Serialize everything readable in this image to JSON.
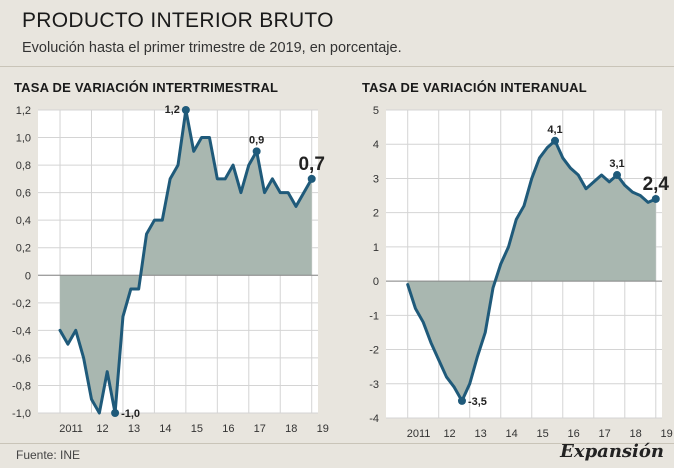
{
  "header": {
    "title": "PRODUCTO INTERIOR BRUTO",
    "subtitle": "Evolución hasta el primer trimestre de 2019, en porcentaje."
  },
  "footer": {
    "source": "Fuente: INE",
    "brand": "Expansión"
  },
  "colors": {
    "line": "#1f5a7a",
    "area": "#a9b7b0",
    "plot_bg": "#ffffff",
    "grid": "#d4d4d4",
    "background": "#e8e5de"
  },
  "chart_data": [
    {
      "type": "area",
      "title": "TASA DE VARIACIÓN INTERTRIMESTRAL",
      "xlabel": "",
      "ylabel": "",
      "ylim": [
        -1.0,
        1.2
      ],
      "yticks": [
        -1.0,
        -0.8,
        -0.6,
        -0.4,
        -0.2,
        0,
        0.2,
        0.4,
        0.6,
        0.8,
        1.0,
        1.2
      ],
      "ytick_labels": [
        "-1,0",
        "-0,8",
        "-0,6",
        "-0,4",
        "-0,2",
        "0",
        "0,2",
        "0,4",
        "0,6",
        "0,8",
        "1,0",
        "1,2"
      ],
      "categories": [
        "2011",
        "12",
        "13",
        "14",
        "15",
        "16",
        "17",
        "18",
        "19"
      ],
      "x": [
        2011.0,
        2011.25,
        2011.5,
        2011.75,
        2012.0,
        2012.25,
        2012.5,
        2012.75,
        2013.0,
        2013.25,
        2013.5,
        2013.75,
        2014.0,
        2014.25,
        2014.5,
        2014.75,
        2015.0,
        2015.25,
        2015.5,
        2015.75,
        2016.0,
        2016.25,
        2016.5,
        2016.75,
        2017.0,
        2017.25,
        2017.5,
        2017.75,
        2018.0,
        2018.25,
        2018.5,
        2018.75,
        2019.0
      ],
      "values": [
        -0.4,
        -0.5,
        -0.4,
        -0.6,
        -0.9,
        -1.0,
        -0.7,
        -1.0,
        -0.3,
        -0.1,
        -0.1,
        0.3,
        0.4,
        0.4,
        0.7,
        0.8,
        1.2,
        0.9,
        1.0,
        1.0,
        0.7,
        0.7,
        0.8,
        0.6,
        0.8,
        0.9,
        0.6,
        0.7,
        0.6,
        0.6,
        0.5,
        0.6,
        0.7
      ],
      "annotations": [
        {
          "index": 16,
          "label": "1,2",
          "pos": "left"
        },
        {
          "index": 7,
          "label": "-1,0",
          "pos": "right"
        },
        {
          "index": 25,
          "label": "0,9",
          "pos": "above"
        },
        {
          "index": 32,
          "label": "0,7",
          "pos": "big"
        }
      ],
      "grid": true
    },
    {
      "type": "area",
      "title": "TASA DE VARIACIÓN INTERANUAL",
      "xlabel": "",
      "ylabel": "",
      "ylim": [
        -4,
        5
      ],
      "yticks": [
        -4,
        -3,
        -2,
        -1,
        0,
        1,
        2,
        3,
        4,
        5
      ],
      "ytick_labels": [
        "-4",
        "-3",
        "-2",
        "-1",
        "0",
        "1",
        "2",
        "3",
        "4",
        "5"
      ],
      "categories": [
        "2011",
        "12",
        "13",
        "14",
        "15",
        "16",
        "17",
        "18",
        "19"
      ],
      "x": [
        2011.0,
        2011.25,
        2011.5,
        2011.75,
        2012.0,
        2012.25,
        2012.5,
        2012.75,
        2013.0,
        2013.25,
        2013.5,
        2013.75,
        2014.0,
        2014.25,
        2014.5,
        2014.75,
        2015.0,
        2015.25,
        2015.5,
        2015.75,
        2016.0,
        2016.25,
        2016.5,
        2016.75,
        2017.0,
        2017.25,
        2017.5,
        2017.75,
        2018.0,
        2018.25,
        2018.5,
        2018.75,
        2019.0
      ],
      "values": [
        -0.1,
        -0.8,
        -1.2,
        -1.8,
        -2.3,
        -2.8,
        -3.1,
        -3.5,
        -3.0,
        -2.2,
        -1.5,
        -0.2,
        0.5,
        1.0,
        1.8,
        2.2,
        3.0,
        3.6,
        3.9,
        4.1,
        3.6,
        3.3,
        3.1,
        2.7,
        2.9,
        3.1,
        2.9,
        3.1,
        2.8,
        2.6,
        2.5,
        2.3,
        2.4
      ],
      "annotations": [
        {
          "index": 19,
          "label": "4,1",
          "pos": "above"
        },
        {
          "index": 7,
          "label": "-3,5",
          "pos": "right"
        },
        {
          "index": 27,
          "label": "3,1",
          "pos": "above"
        },
        {
          "index": 32,
          "label": "2,4",
          "pos": "big"
        }
      ],
      "grid": true
    }
  ]
}
